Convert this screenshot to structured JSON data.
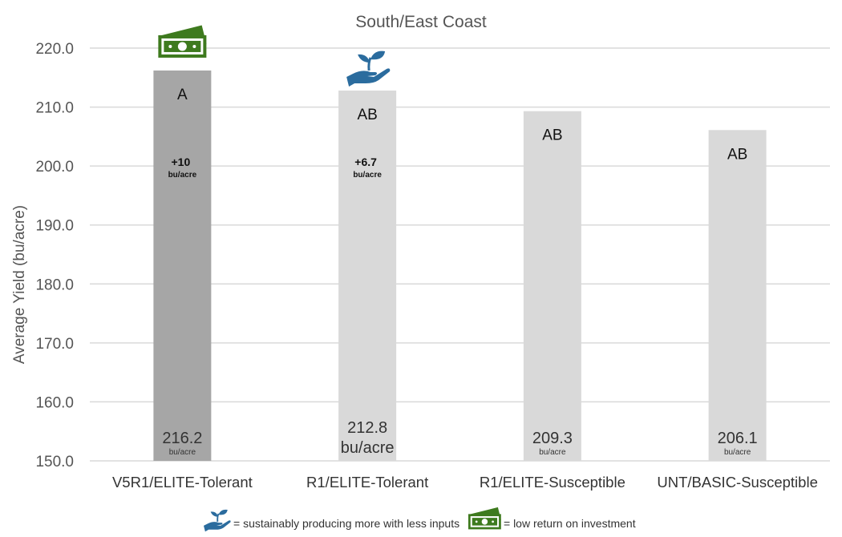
{
  "chart_data": {
    "type": "bar",
    "title": "South/East Coast",
    "ylabel": "Average Yield (bu/acre)",
    "xlabel": "",
    "ylim": [
      150,
      220
    ],
    "yticks": [
      "150.0",
      "160.0",
      "170.0",
      "180.0",
      "190.0",
      "200.0",
      "210.0",
      "220.0"
    ],
    "grid": true,
    "categories": [
      "V5R1/ELITE-Tolerant",
      "R1/ELITE-Tolerant",
      "R1/ELITE-Susceptible",
      "UNT/BASIC-Susceptible"
    ],
    "values": [
      216.2,
      212.8,
      209.3,
      206.1
    ],
    "value_labels": [
      "216.2",
      "212.8",
      "209.3",
      "206.1"
    ],
    "unit_labels": [
      "bu/acre",
      "bu/acre",
      "bu/acre",
      "bu/acre"
    ],
    "significance": [
      "A",
      "AB",
      "AB",
      "AB"
    ],
    "differences": [
      {
        "value": "+10",
        "unit": "bu/acre"
      },
      {
        "value": "+6.7",
        "unit": "bu/acre"
      },
      null,
      null
    ],
    "bar_colors": [
      "#a6a6a6",
      "#d9d9d9",
      "#d9d9d9",
      "#d9d9d9"
    ],
    "bar_icons": [
      "money-icon",
      "seedling-hand-icon",
      null,
      null
    ]
  },
  "legend": [
    {
      "icon": "seedling-hand-icon",
      "text": "= sustainably producing more with less inputs"
    },
    {
      "icon": "money-icon",
      "text": "= low return on investment"
    }
  ],
  "colors": {
    "grid": "#d9d9d9",
    "money_green": "#3e7a1e",
    "seedling_blue": "#2b6c9e"
  }
}
